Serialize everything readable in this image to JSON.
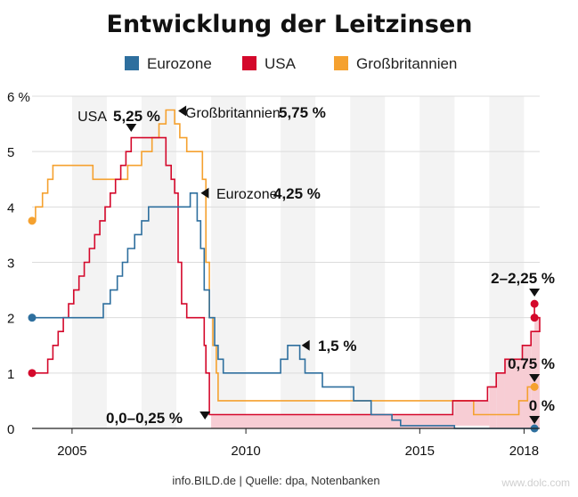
{
  "chart_data": {
    "type": "line",
    "title": "Entwicklung der Leitzinsen",
    "ylabel": "%",
    "ylim": [
      0,
      6
    ],
    "yticks": [
      {
        "value": 0,
        "label": "0"
      },
      {
        "value": 1,
        "label": "1"
      },
      {
        "value": 2,
        "label": "2"
      },
      {
        "value": 3,
        "label": "3"
      },
      {
        "value": 4,
        "label": "4"
      },
      {
        "value": 5,
        "label": "5"
      },
      {
        "value": 6,
        "label": "6 %"
      }
    ],
    "xlim": [
      2003.85,
      2018.45
    ],
    "xticks": [
      {
        "value": 2005,
        "label": "2005"
      },
      {
        "value": 2010,
        "label": "2010"
      },
      {
        "value": 2015,
        "label": "2015"
      },
      {
        "value": 2018,
        "label": "2018"
      }
    ],
    "year_bands": [
      2004,
      2005,
      2006,
      2007,
      2008,
      2009,
      2010,
      2011,
      2012,
      2013,
      2014,
      2015,
      2016,
      2017,
      2018
    ],
    "series": [
      {
        "name": "Eurozone",
        "color": "#2e6f9e",
        "start_marker": {
          "x": 2003.85,
          "y": 2
        },
        "end_marker": {
          "x": 2018.3,
          "y": 0
        },
        "points": [
          [
            2003.85,
            2
          ],
          [
            2005.9,
            2
          ],
          [
            2005.9,
            2.25
          ],
          [
            2006.1,
            2.25
          ],
          [
            2006.1,
            2.5
          ],
          [
            2006.3,
            2.5
          ],
          [
            2006.3,
            2.75
          ],
          [
            2006.45,
            2.75
          ],
          [
            2006.45,
            3
          ],
          [
            2006.6,
            3
          ],
          [
            2006.6,
            3.25
          ],
          [
            2006.8,
            3.25
          ],
          [
            2006.8,
            3.5
          ],
          [
            2007.0,
            3.5
          ],
          [
            2007.0,
            3.75
          ],
          [
            2007.2,
            3.75
          ],
          [
            2007.2,
            4
          ],
          [
            2008.4,
            4
          ],
          [
            2008.4,
            4.25
          ],
          [
            2008.6,
            4.25
          ],
          [
            2008.6,
            3.75
          ],
          [
            2008.7,
            3.75
          ],
          [
            2008.7,
            3.25
          ],
          [
            2008.8,
            3.25
          ],
          [
            2008.8,
            2.5
          ],
          [
            2008.95,
            2.5
          ],
          [
            2008.95,
            2
          ],
          [
            2009.1,
            2
          ],
          [
            2009.1,
            1.5
          ],
          [
            2009.2,
            1.5
          ],
          [
            2009.2,
            1.25
          ],
          [
            2009.35,
            1.25
          ],
          [
            2009.35,
            1
          ],
          [
            2011.0,
            1
          ],
          [
            2011.0,
            1.25
          ],
          [
            2011.2,
            1.25
          ],
          [
            2011.2,
            1.5
          ],
          [
            2011.55,
            1.5
          ],
          [
            2011.55,
            1.25
          ],
          [
            2011.7,
            1.25
          ],
          [
            2011.7,
            1
          ],
          [
            2012.2,
            1
          ],
          [
            2012.2,
            0.75
          ],
          [
            2013.1,
            0.75
          ],
          [
            2013.1,
            0.5
          ],
          [
            2013.6,
            0.5
          ],
          [
            2013.6,
            0.25
          ],
          [
            2014.2,
            0.25
          ],
          [
            2014.2,
            0.15
          ],
          [
            2014.45,
            0.15
          ],
          [
            2014.45,
            0.05
          ],
          [
            2016.0,
            0.05
          ],
          [
            2016.0,
            0
          ],
          [
            2018.3,
            0
          ]
        ]
      },
      {
        "name": "USA",
        "color": "#d4082b",
        "start_marker": {
          "x": 2003.85,
          "y": 1
        },
        "end_marker": {
          "x": 2018.3,
          "y": 2
        },
        "end_marker_2": {
          "x": 2018.3,
          "y": 2.25
        },
        "points": [
          [
            2003.85,
            1
          ],
          [
            2004.3,
            1
          ],
          [
            2004.3,
            1.25
          ],
          [
            2004.45,
            1.25
          ],
          [
            2004.45,
            1.5
          ],
          [
            2004.6,
            1.5
          ],
          [
            2004.6,
            1.75
          ],
          [
            2004.75,
            1.75
          ],
          [
            2004.75,
            2
          ],
          [
            2004.9,
            2
          ],
          [
            2004.9,
            2.25
          ],
          [
            2005.05,
            2.25
          ],
          [
            2005.05,
            2.5
          ],
          [
            2005.2,
            2.5
          ],
          [
            2005.2,
            2.75
          ],
          [
            2005.35,
            2.75
          ],
          [
            2005.35,
            3
          ],
          [
            2005.5,
            3
          ],
          [
            2005.5,
            3.25
          ],
          [
            2005.65,
            3.25
          ],
          [
            2005.65,
            3.5
          ],
          [
            2005.8,
            3.5
          ],
          [
            2005.8,
            3.75
          ],
          [
            2005.95,
            3.75
          ],
          [
            2005.95,
            4
          ],
          [
            2006.1,
            4
          ],
          [
            2006.1,
            4.25
          ],
          [
            2006.25,
            4.25
          ],
          [
            2006.25,
            4.5
          ],
          [
            2006.4,
            4.5
          ],
          [
            2006.4,
            4.75
          ],
          [
            2006.55,
            4.75
          ],
          [
            2006.55,
            5
          ],
          [
            2006.7,
            5
          ],
          [
            2006.7,
            5.25
          ],
          [
            2007.7,
            5.25
          ],
          [
            2007.7,
            4.75
          ],
          [
            2007.85,
            4.75
          ],
          [
            2007.85,
            4.5
          ],
          [
            2007.95,
            4.5
          ],
          [
            2007.95,
            4.25
          ],
          [
            2008.05,
            4.25
          ],
          [
            2008.05,
            3
          ],
          [
            2008.15,
            3
          ],
          [
            2008.15,
            2.25
          ],
          [
            2008.3,
            2.25
          ],
          [
            2008.3,
            2
          ],
          [
            2008.8,
            2
          ],
          [
            2008.8,
            1.5
          ],
          [
            2008.85,
            1.5
          ],
          [
            2008.85,
            1
          ],
          [
            2008.95,
            1
          ],
          [
            2008.95,
            0.25
          ],
          [
            2015.95,
            0.25
          ],
          [
            2015.95,
            0.5
          ],
          [
            2016.95,
            0.5
          ],
          [
            2016.95,
            0.75
          ],
          [
            2017.2,
            0.75
          ],
          [
            2017.2,
            1
          ],
          [
            2017.45,
            1
          ],
          [
            2017.45,
            1.25
          ],
          [
            2017.95,
            1.25
          ],
          [
            2017.95,
            1.5
          ],
          [
            2018.2,
            1.5
          ],
          [
            2018.2,
            1.75
          ],
          [
            2018.45,
            1.75
          ],
          [
            2018.45,
            2
          ],
          [
            2018.3,
            2
          ],
          [
            2018.3,
            2.25
          ]
        ]
      },
      {
        "name": "Großbritannien",
        "color": "#f5a12f",
        "start_marker": {
          "x": 2003.85,
          "y": 3.75
        },
        "end_marker": {
          "x": 2018.3,
          "y": 0.75
        },
        "points": [
          [
            2003.85,
            3.75
          ],
          [
            2003.95,
            3.75
          ],
          [
            2003.95,
            4
          ],
          [
            2004.15,
            4
          ],
          [
            2004.15,
            4.25
          ],
          [
            2004.3,
            4.25
          ],
          [
            2004.3,
            4.5
          ],
          [
            2004.45,
            4.5
          ],
          [
            2004.45,
            4.75
          ],
          [
            2005.6,
            4.75
          ],
          [
            2005.6,
            4.5
          ],
          [
            2006.6,
            4.5
          ],
          [
            2006.6,
            4.75
          ],
          [
            2007.0,
            4.75
          ],
          [
            2007.0,
            5
          ],
          [
            2007.3,
            5
          ],
          [
            2007.3,
            5.25
          ],
          [
            2007.5,
            5.25
          ],
          [
            2007.5,
            5.5
          ],
          [
            2007.7,
            5.5
          ],
          [
            2007.7,
            5.75
          ],
          [
            2007.95,
            5.75
          ],
          [
            2007.95,
            5.5
          ],
          [
            2008.1,
            5.5
          ],
          [
            2008.1,
            5.25
          ],
          [
            2008.3,
            5.25
          ],
          [
            2008.3,
            5
          ],
          [
            2008.75,
            5
          ],
          [
            2008.75,
            4.5
          ],
          [
            2008.85,
            4.5
          ],
          [
            2008.85,
            3
          ],
          [
            2008.95,
            3
          ],
          [
            2008.95,
            2
          ],
          [
            2009.05,
            2
          ],
          [
            2009.05,
            1.5
          ],
          [
            2009.15,
            1.5
          ],
          [
            2009.15,
            1
          ],
          [
            2009.2,
            1
          ],
          [
            2009.2,
            0.5
          ],
          [
            2016.55,
            0.5
          ],
          [
            2016.55,
            0.25
          ],
          [
            2017.85,
            0.25
          ],
          [
            2017.85,
            0.5
          ],
          [
            2018.1,
            0.5
          ],
          [
            2018.1,
            0.75
          ],
          [
            2018.3,
            0.75
          ]
        ]
      }
    ],
    "shaded_spread": {
      "color": "#f7cdd4",
      "segments": [
        [
          2009.0,
          2016.0,
          0,
          0.25
        ],
        [
          2016.0,
          2017.0,
          0.05,
          0.5
        ],
        [
          2017.0,
          2017.2,
          0,
          0.75
        ],
        [
          2017.2,
          2017.45,
          0,
          1
        ],
        [
          2017.45,
          2017.95,
          0,
          1.25
        ],
        [
          2017.95,
          2018.2,
          0,
          1.5
        ],
        [
          2018.2,
          2018.45,
          0,
          1.75
        ],
        [
          2018.45,
          2018.3,
          0,
          2
        ]
      ]
    },
    "legend": [
      {
        "name": "Eurozone",
        "color": "#2e6f9e"
      },
      {
        "name": "USA",
        "color": "#d4082b"
      },
      {
        "name": "Großbritannien",
        "color": "#f5a12f"
      }
    ],
    "legend_position": "top",
    "annotations": [
      {
        "id": "usa-peak",
        "label": "USA",
        "value": "5,25 %",
        "x": 2006.7,
        "y": 5.25
      },
      {
        "id": "gb-peak",
        "label": "Großbritannien",
        "value": "5,75 %",
        "x": 2007.9,
        "y": 5.75
      },
      {
        "id": "ez-peak",
        "label": "Eurozone",
        "value": "4,25 %",
        "x": 2008.6,
        "y": 4.25
      },
      {
        "id": "ez-2011",
        "label": "",
        "value": "1,5 %",
        "x": 2011.5,
        "y": 1.5
      },
      {
        "id": "usa-low",
        "label": "",
        "value": "0,0–0,25 %",
        "x": 2008.9,
        "y": 0.25
      },
      {
        "id": "usa-now",
        "label": "",
        "value": "2–2,25 %",
        "x": 2018.3,
        "y": 2.25
      },
      {
        "id": "gb-now",
        "label": "",
        "value": "0,75 %",
        "x": 2018.3,
        "y": 0.75
      },
      {
        "id": "ez-now",
        "label": "",
        "value": "0 %",
        "x": 2018.3,
        "y": 0
      }
    ],
    "source": "info.BILD.de | Quelle: dpa, Notenbanken",
    "watermark": "www.dolc.com"
  }
}
